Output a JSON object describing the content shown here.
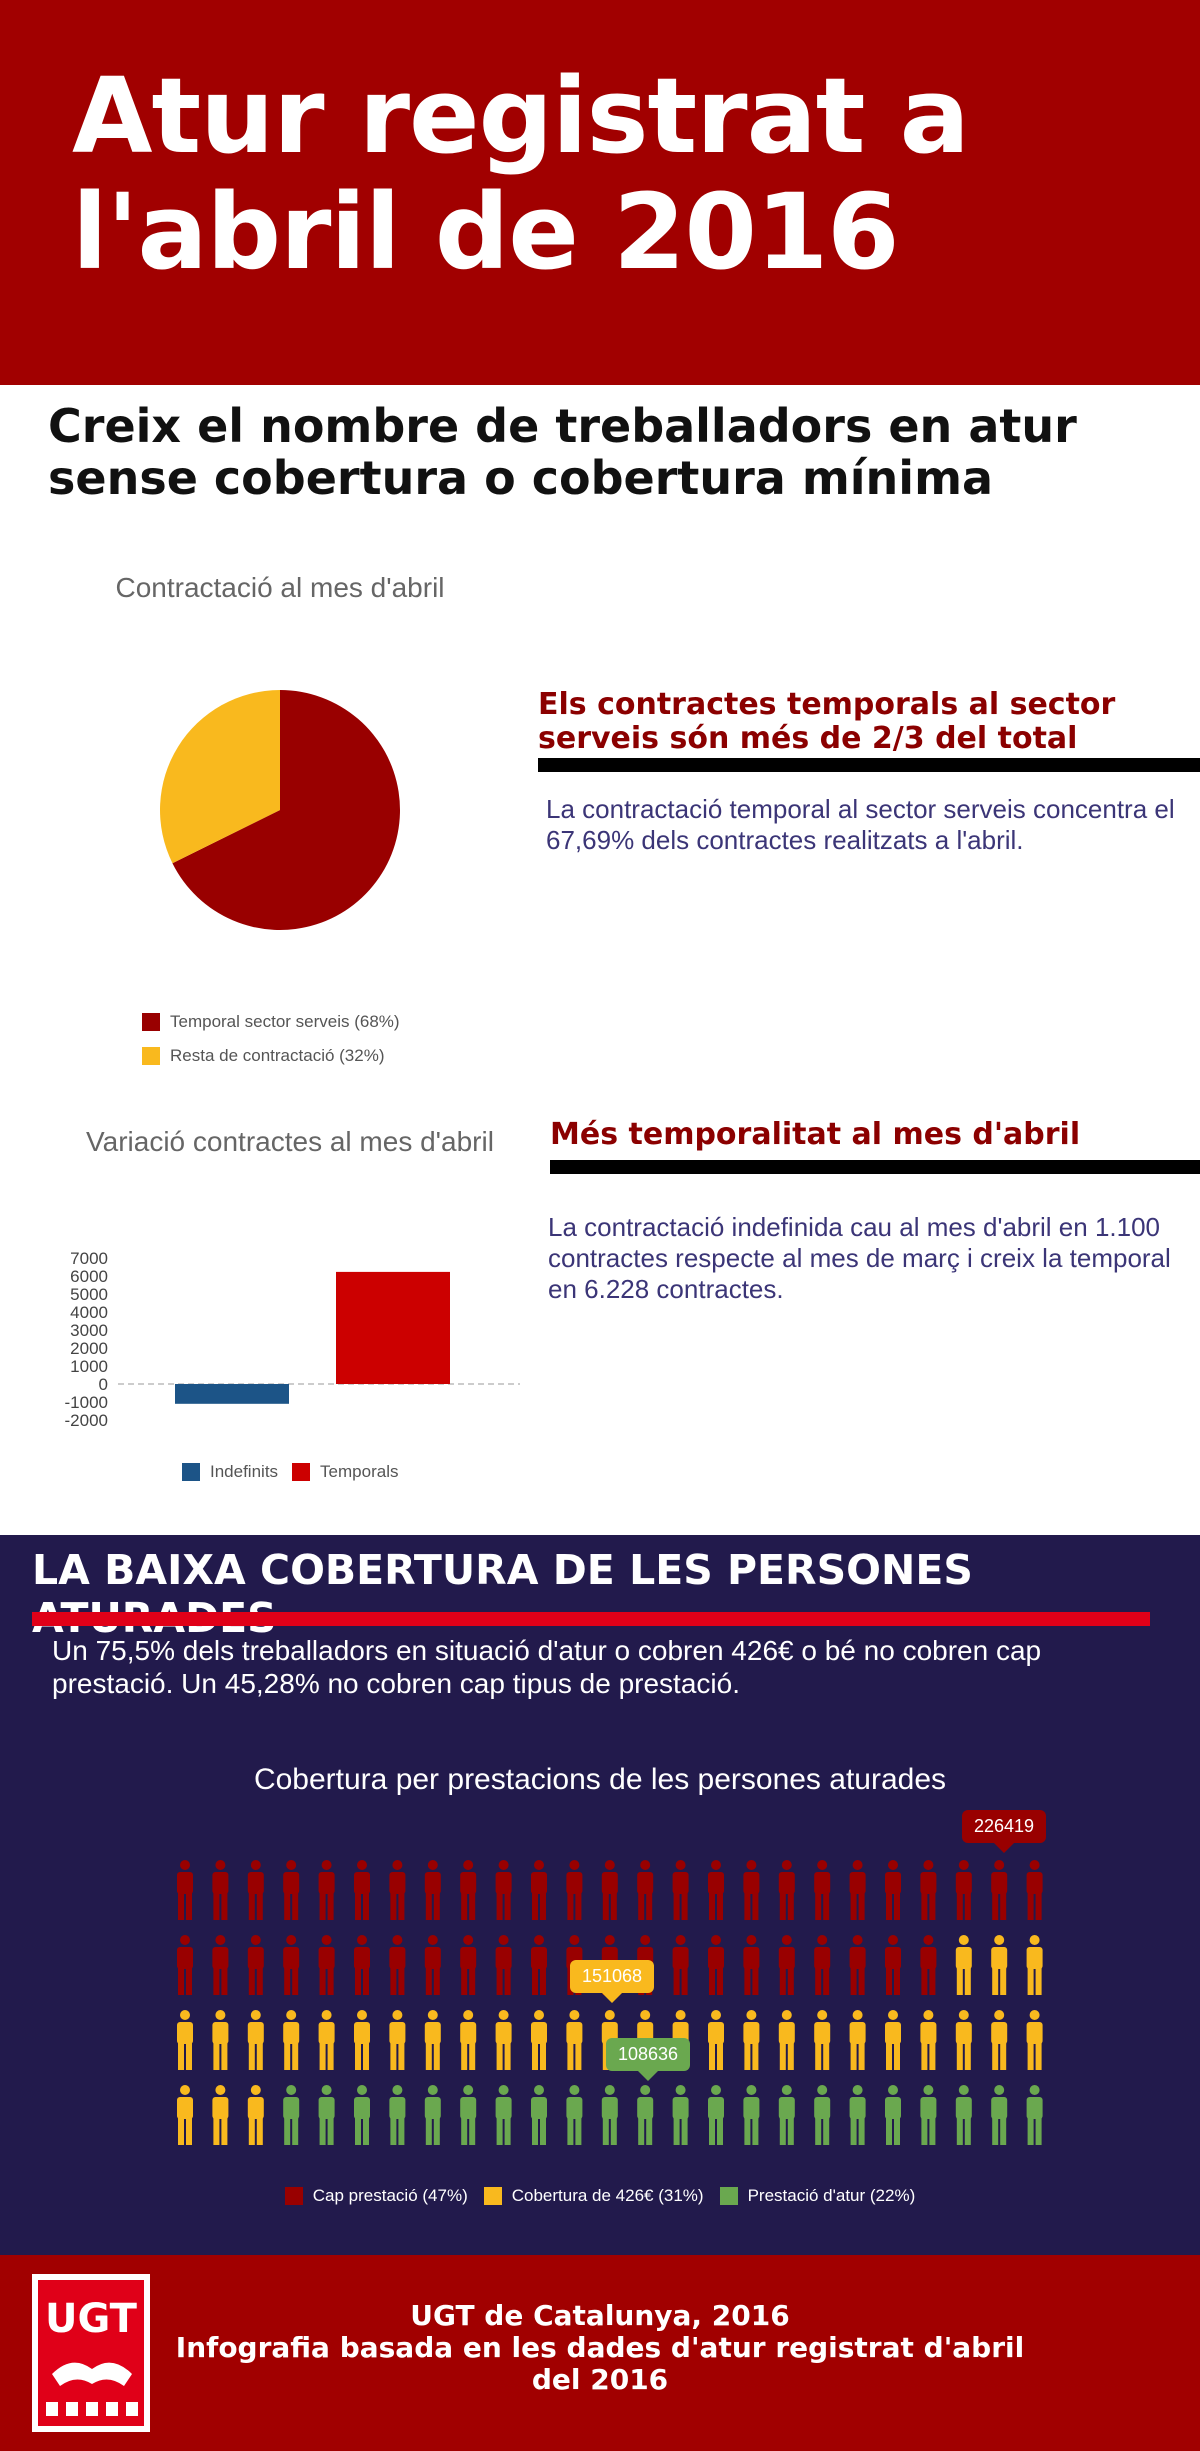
{
  "title": "Atur registrat a l'abril de 2016",
  "subtitle": "Creix el nombre de treballadors en atur sense cobertura o cobertura mínima",
  "colors": {
    "header_red": "#a10000",
    "dark_red": "#8b0000",
    "pie_red": "#990000",
    "yellow": "#f9b91e",
    "blue": "#1c5487",
    "bar_red": "#cc0000",
    "green": "#6aa84f",
    "navy": "#221a4c",
    "text_purple": "#3b3577"
  },
  "section1": {
    "heading": "Els contractes temporals al sector serveis són més de 2/3 del total",
    "text": "La contractació temporal al sector serveis concentra el 67,69% dels contractes realitzats a l'abril."
  },
  "section2": {
    "heading": "Més temporalitat al mes d'abril",
    "text": "La contractació indefinida cau al mes d'abril en 1.100 contractes respecte al mes de març i creix la temporal en 6.228 contractes."
  },
  "section3": {
    "title": "LA BAIXA COBERTURA DE LES PERSONES ATURADES",
    "text": "Un 75,5% dels treballadors en situació d'atur o cobren 426€ o bé no cobren cap prestació. Un 45,28% no cobren cap tipus de prestació."
  },
  "footer": {
    "logo_text": "UGT",
    "line1": "UGT de Catalunya, 2016",
    "line2": "Infografia basada en les dades d'atur registrat d'abril del 2016"
  },
  "chart_data": [
    {
      "type": "pie",
      "title": "Contractació al mes d'abril",
      "series": [
        {
          "name": "Temporal sector serveis (68%)",
          "value": 67.69,
          "color": "#990000"
        },
        {
          "name": "Resta de contractació (32%)",
          "value": 32.31,
          "color": "#f9b91e"
        }
      ],
      "legend": "bottom-left"
    },
    {
      "type": "bar",
      "title": "Variació contractes al mes d'abril",
      "categories": [
        ""
      ],
      "series": [
        {
          "name": "Indefinits",
          "values": [
            -1100
          ],
          "color": "#1c5487"
        },
        {
          "name": "Temporals",
          "values": [
            6228
          ],
          "color": "#cc0000"
        }
      ],
      "y_ticks": [
        "7000",
        "6000",
        "5000",
        "4000",
        "3000",
        "2000",
        "1000",
        "0",
        "-1000",
        "-2000"
      ],
      "ylim": [
        -2000,
        7000
      ],
      "legend": "bottom"
    },
    {
      "type": "pictogram",
      "title": "Cobertura per prestacions de les persones aturades",
      "rows": 4,
      "cols": 25,
      "series": [
        {
          "name": "Cap prestació (47%)",
          "value": 226419,
          "icons": 47,
          "color": "#990000"
        },
        {
          "name": "Cobertura de 426€ (31%)",
          "value": 151068,
          "icons": 31,
          "color": "#f9b91e"
        },
        {
          "name": "Prestació d'atur (22%)",
          "value": 108636,
          "icons": 22,
          "color": "#6aa84f"
        }
      ],
      "labels": [
        "226419",
        "151068",
        "108636"
      ],
      "legend": "bottom"
    }
  ]
}
